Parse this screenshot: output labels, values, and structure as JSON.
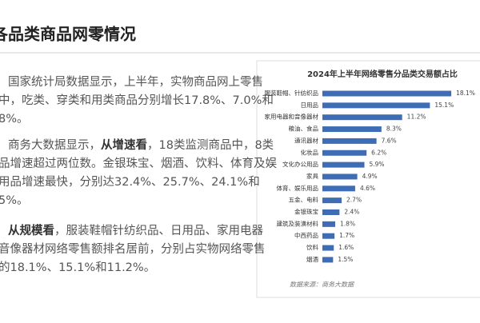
{
  "header": {
    "title": "各品类商品网零情况"
  },
  "paragraphs": [
    {
      "lines": [
        [
          {
            "text": "国家统计局数据显示，上半年，实物商品网上零售",
            "bold": false
          }
        ],
        [
          {
            "text": "中，吃类、穿类和用类商品分别增长17.8%、7.0%和",
            "bold": false
          }
        ],
        [
          {
            "text": "8%。",
            "bold": false
          }
        ]
      ]
    },
    {
      "lines": [
        [
          {
            "text": "商务大数据显示，",
            "bold": false
          },
          {
            "text": "从增速看",
            "bold": true
          },
          {
            "text": "，18类监测商品中，8类",
            "bold": false
          }
        ],
        [
          {
            "text": "品增速超过两位数。金银珠宝、烟酒、饮料、体育及娱",
            "bold": false
          }
        ],
        [
          {
            "text": "用品增速最快，分别达32.4%、25.7%、24.1%和",
            "bold": false
          }
        ],
        [
          {
            "text": "5%。",
            "bold": false
          }
        ]
      ]
    },
    {
      "lines": [
        [
          {
            "text": "从规模看",
            "bold": true
          },
          {
            "text": "，服装鞋帽针纺织品、日用品、家用电器",
            "bold": false
          }
        ],
        [
          {
            "text": "音像器材网络零售额排名居前，分别占实物网络零售",
            "bold": false
          }
        ],
        [
          {
            "text": "的18.1%、15.1%和11.2%。",
            "bold": false
          }
        ]
      ]
    }
  ],
  "chart_data": {
    "type": "bar",
    "orientation": "horizontal",
    "title": "2024年上半年网络零售分品类交易额占比",
    "color": "#3e6db5",
    "categories": [
      "服装鞋帽、针纺织品",
      "日用品",
      "家用电器和音像器材",
      "粮油、食品",
      "通讯器材",
      "化妆品",
      "文化办公用品",
      "家具",
      "体育、娱乐用品",
      "五金、电料",
      "金银珠宝",
      "建筑及装潢材料",
      "中西药品",
      "饮料",
      "烟酒"
    ],
    "values": [
      18.1,
      15.1,
      11.2,
      8.3,
      7.6,
      6.2,
      5.9,
      4.9,
      4.6,
      2.7,
      2.4,
      1.8,
      1.7,
      1.6,
      1.5
    ],
    "value_labels": [
      "18.1%",
      "15.1%",
      "11.2%",
      "8.3%",
      "7.6%",
      "6.2%",
      "5.9%",
      "4.9%",
      "4.6%",
      "2.7%",
      "2.4%",
      "1.8%",
      "1.7%",
      "1.6%",
      "1.5%"
    ],
    "source": "数据来源：商务大数据"
  }
}
